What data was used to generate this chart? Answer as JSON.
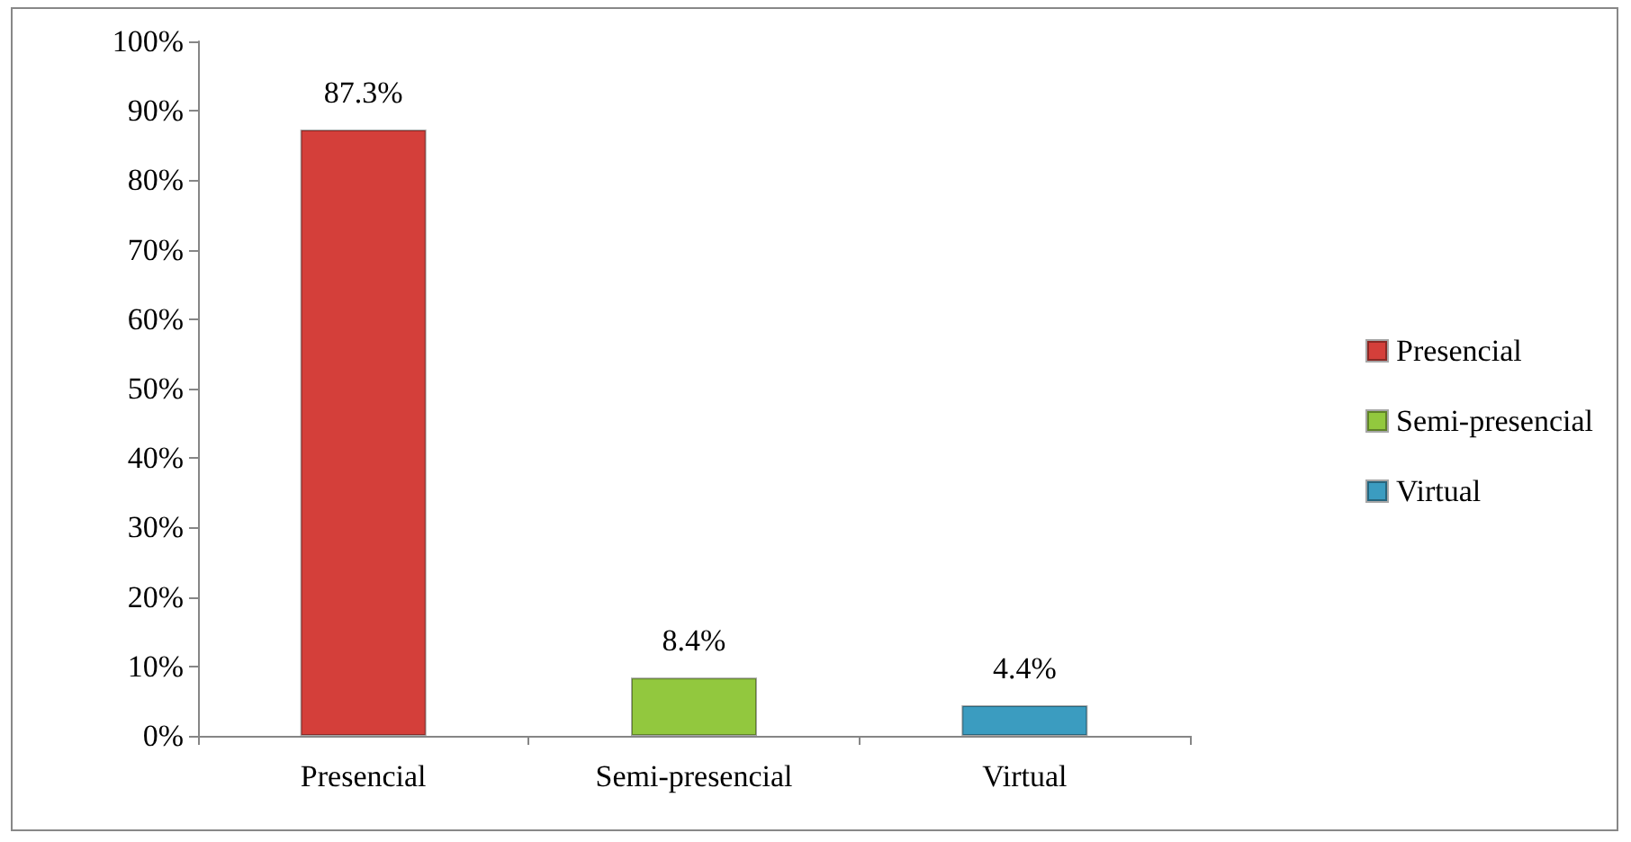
{
  "chart_data": {
    "type": "bar",
    "categories": [
      "Presencial",
      "Semi-presencial",
      "Virtual"
    ],
    "series": [
      {
        "name": "Presencial",
        "color": "#d43f3a",
        "values": [
          87.3,
          null,
          null
        ],
        "value_labels": [
          "87.3%",
          null,
          null
        ]
      },
      {
        "name": "Semi-presencial",
        "color": "#92c83e",
        "values": [
          null,
          8.4,
          null
        ],
        "value_labels": [
          null,
          "8.4%",
          null
        ]
      },
      {
        "name": "Virtual",
        "color": "#3b9cc0",
        "values": [
          null,
          null,
          4.4
        ],
        "value_labels": [
          null,
          null,
          "4.4%"
        ]
      }
    ],
    "ylim": [
      0,
      100
    ],
    "yticks": [
      {
        "value": 0,
        "label": "0%"
      },
      {
        "value": 10,
        "label": "10%"
      },
      {
        "value": 20,
        "label": "20%"
      },
      {
        "value": 30,
        "label": "30%"
      },
      {
        "value": 40,
        "label": "40%"
      },
      {
        "value": 50,
        "label": "50%"
      },
      {
        "value": 60,
        "label": "60%"
      },
      {
        "value": 70,
        "label": "70%"
      },
      {
        "value": 80,
        "label": "80%"
      },
      {
        "value": 90,
        "label": "90%"
      },
      {
        "value": 100,
        "label": "100%"
      }
    ],
    "grid": false,
    "legend": "right"
  }
}
